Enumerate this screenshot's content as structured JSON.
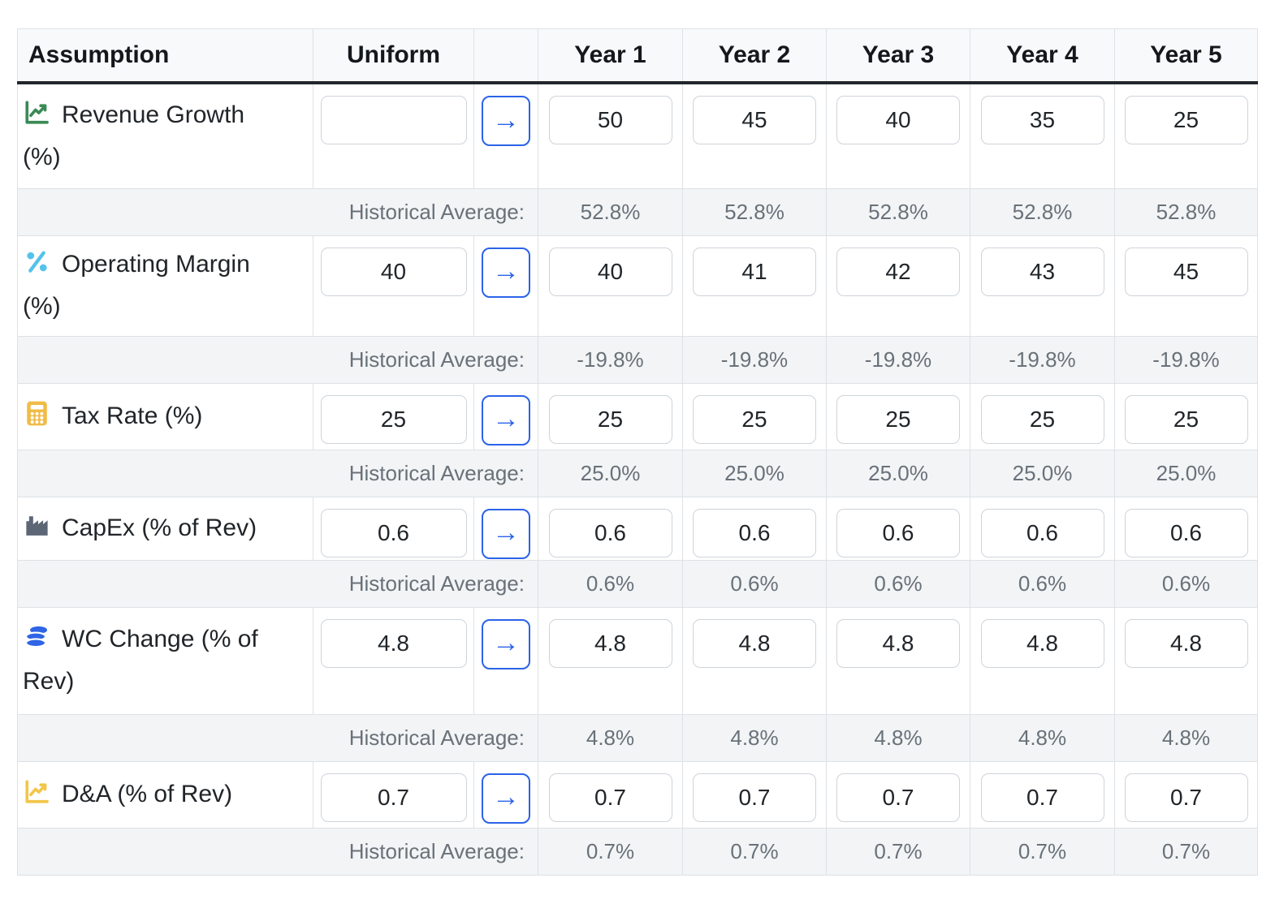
{
  "table": {
    "headers": [
      "Assumption",
      "Uniform",
      "",
      "Year 1",
      "Year 2",
      "Year 3",
      "Year 4",
      "Year 5"
    ],
    "historical_label": "Historical Average:",
    "arrow_icon": "→",
    "colors": {
      "accent_blue": "#2b63e8",
      "header_bg": "#f8f9fa",
      "hist_row_bg": "#f2f4f6",
      "header_border": "#23272d",
      "grid_border": "#dee2e6",
      "input_border": "#ced4da",
      "label_text": "#212529",
      "hist_text": "#697179"
    },
    "rows": [
      {
        "label": "Revenue Growth\n(%)",
        "icon": "line-chart-icon",
        "icon_color": "#3a8a55",
        "uniform": "",
        "years": [
          "50",
          "45",
          "40",
          "35",
          "25"
        ],
        "historical": [
          "52.8%",
          "52.8%",
          "52.8%",
          "52.8%",
          "52.8%"
        ]
      },
      {
        "label": "Operating Margin\n(%)",
        "icon": "percent-icon",
        "icon_color": "#55c3e9",
        "uniform": "40",
        "years": [
          "40",
          "41",
          "42",
          "43",
          "45"
        ],
        "historical": [
          "-19.8%",
          "-19.8%",
          "-19.8%",
          "-19.8%",
          "-19.8%"
        ]
      },
      {
        "label": "Tax Rate (%)",
        "icon": "calculator-icon",
        "icon_color": "#f0bc47",
        "uniform": "25",
        "years": [
          "25",
          "25",
          "25",
          "25",
          "25"
        ],
        "historical": [
          "25.0%",
          "25.0%",
          "25.0%",
          "25.0%",
          "25.0%"
        ]
      },
      {
        "label": "CapEx (% of Rev)",
        "icon": "factory-icon",
        "icon_color": "#5d6675",
        "uniform": "0.6",
        "years": [
          "0.6",
          "0.6",
          "0.6",
          "0.6",
          "0.6"
        ],
        "historical": [
          "0.6%",
          "0.6%",
          "0.6%",
          "0.6%",
          "0.6%"
        ]
      },
      {
        "label": "WC Change (% of\nRev)",
        "icon": "coins-icon",
        "icon_color": "#2e64e5",
        "uniform": "4.8",
        "years": [
          "4.8",
          "4.8",
          "4.8",
          "4.8",
          "4.8"
        ],
        "historical": [
          "4.8%",
          "4.8%",
          "4.8%",
          "4.8%",
          "4.8%"
        ]
      },
      {
        "label": "D&A (% of Rev)",
        "icon": "line-chart-icon",
        "icon_color": "#f2c64b",
        "uniform": "0.7",
        "years": [
          "0.7",
          "0.7",
          "0.7",
          "0.7",
          "0.7"
        ],
        "historical": [
          "0.7%",
          "0.7%",
          "0.7%",
          "0.7%",
          "0.7%"
        ]
      }
    ]
  }
}
